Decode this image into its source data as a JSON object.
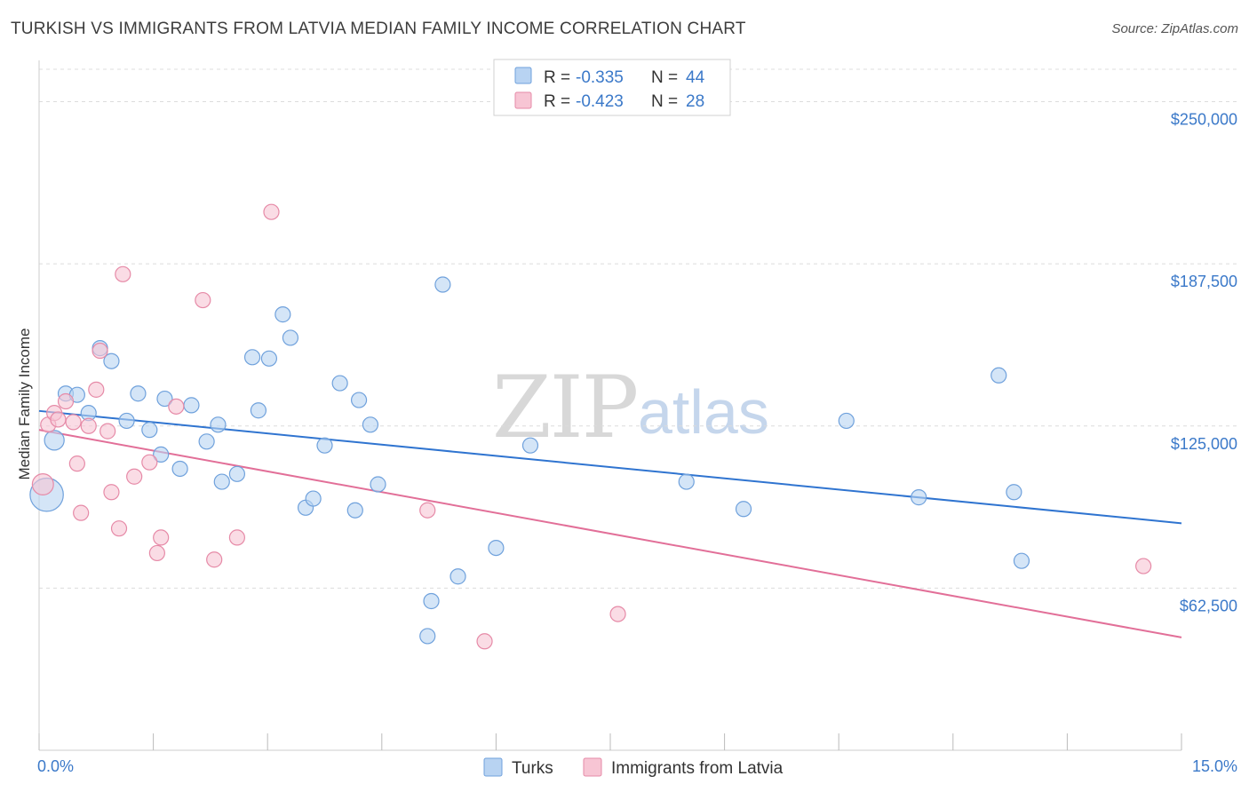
{
  "title": "TURKISH VS IMMIGRANTS FROM LATVIA MEDIAN FAMILY INCOME CORRELATION CHART",
  "source": "Source: ZipAtlas.com",
  "watermark": {
    "zip": "ZIP",
    "atlas": "atlas"
  },
  "legend": {
    "r_label": "R =",
    "n_label": "N =",
    "rows": [
      {
        "r": "-0.335",
        "n": "44",
        "color": "#b8d3f2",
        "stroke": "#6fa1dc"
      },
      {
        "r": "-0.423",
        "n": "28",
        "color": "#f7c5d4",
        "stroke": "#e68aa7"
      }
    ]
  },
  "bottom_legend": [
    "Turks",
    "Immigrants from Latvia"
  ],
  "chart_data": {
    "type": "scatter",
    "title": "TURKISH VS IMMIGRANTS FROM LATVIA MEDIAN FAMILY INCOME CORRELATION CHART",
    "xlabel": "",
    "ylabel": "Median Family Income",
    "xlim": [
      0,
      15
    ],
    "ylim": [
      0,
      262500
    ],
    "x_tick_labels": [
      "0.0%",
      "15.0%"
    ],
    "y_ticks": [
      62500,
      125000,
      187500,
      250000
    ],
    "y_tick_labels": [
      "$62,500",
      "$125,000",
      "$187,500",
      "$250,000"
    ],
    "grid": true,
    "legend_position": "top-center",
    "series": [
      {
        "name": "Turks",
        "color": "#6fa1dc",
        "fill": "#b8d3f2",
        "line_color": "#2f74d0",
        "trend": [
          [
            0,
            130800
          ],
          [
            15,
            87500
          ]
        ],
        "points": [
          [
            0.1,
            98500,
            2.2
          ],
          [
            0.2,
            119500,
            1.3
          ],
          [
            0.35,
            137500,
            1
          ],
          [
            0.5,
            137000,
            1
          ],
          [
            0.65,
            130000,
            1
          ],
          [
            0.8,
            155000,
            1
          ],
          [
            0.95,
            150000,
            1
          ],
          [
            1.15,
            127000,
            1
          ],
          [
            1.3,
            137500,
            1
          ],
          [
            1.45,
            123500,
            1
          ],
          [
            1.6,
            114000,
            1
          ],
          [
            1.65,
            135500,
            1
          ],
          [
            1.85,
            108500,
            1
          ],
          [
            2.0,
            133000,
            1
          ],
          [
            2.2,
            119000,
            1
          ],
          [
            2.35,
            125500,
            1
          ],
          [
            2.4,
            103500,
            1
          ],
          [
            2.6,
            106500,
            1
          ],
          [
            2.8,
            151500,
            1
          ],
          [
            2.88,
            131000,
            1
          ],
          [
            3.02,
            151000,
            1
          ],
          [
            3.2,
            168000,
            1
          ],
          [
            3.3,
            159000,
            1
          ],
          [
            3.5,
            93500,
            1
          ],
          [
            3.6,
            97000,
            1
          ],
          [
            3.75,
            117500,
            1
          ],
          [
            3.95,
            141500,
            1
          ],
          [
            4.15,
            92500,
            1
          ],
          [
            4.2,
            135000,
            1
          ],
          [
            4.35,
            125500,
            1
          ],
          [
            4.45,
            102500,
            1
          ],
          [
            5.1,
            44000,
            1
          ],
          [
            5.15,
            57500,
            1
          ],
          [
            5.3,
            179500,
            1
          ],
          [
            5.5,
            67000,
            1
          ],
          [
            6.0,
            78000,
            1
          ],
          [
            6.45,
            117500,
            1
          ],
          [
            8.5,
            103500,
            1
          ],
          [
            9.25,
            93000,
            1
          ],
          [
            10.6,
            127000,
            1
          ],
          [
            11.55,
            97500,
            1
          ],
          [
            12.6,
            144500,
            1
          ],
          [
            12.8,
            99500,
            1
          ],
          [
            12.9,
            73000,
            1
          ]
        ]
      },
      {
        "name": "Immigrants from Latvia",
        "color": "#e68aa7",
        "fill": "#f7c5d4",
        "line_color": "#e26f98",
        "trend": [
          [
            0,
            123500
          ],
          [
            15,
            43500
          ]
        ],
        "points": [
          [
            0.05,
            102500,
            1.4
          ],
          [
            0.12,
            125500,
            1
          ],
          [
            0.2,
            130000,
            1
          ],
          [
            0.25,
            127500,
            1
          ],
          [
            0.35,
            134500,
            1
          ],
          [
            0.45,
            126500,
            1
          ],
          [
            0.5,
            110500,
            1
          ],
          [
            0.55,
            91500,
            1
          ],
          [
            0.65,
            125000,
            1
          ],
          [
            0.75,
            139000,
            1
          ],
          [
            0.8,
            154000,
            1
          ],
          [
            0.9,
            123000,
            1
          ],
          [
            0.95,
            99500,
            1
          ],
          [
            1.05,
            85500,
            1
          ],
          [
            1.1,
            183500,
            1
          ],
          [
            1.25,
            105500,
            1
          ],
          [
            1.45,
            111000,
            1
          ],
          [
            1.55,
            76000,
            1
          ],
          [
            1.6,
            82000,
            1
          ],
          [
            1.8,
            132500,
            1
          ],
          [
            2.15,
            173500,
            1
          ],
          [
            2.3,
            73500,
            1
          ],
          [
            2.6,
            82000,
            1
          ],
          [
            3.05,
            207500,
            1
          ],
          [
            5.1,
            92500,
            1
          ],
          [
            5.85,
            42000,
            1
          ],
          [
            7.6,
            52500,
            1
          ],
          [
            14.5,
            71000,
            1
          ]
        ]
      }
    ]
  }
}
